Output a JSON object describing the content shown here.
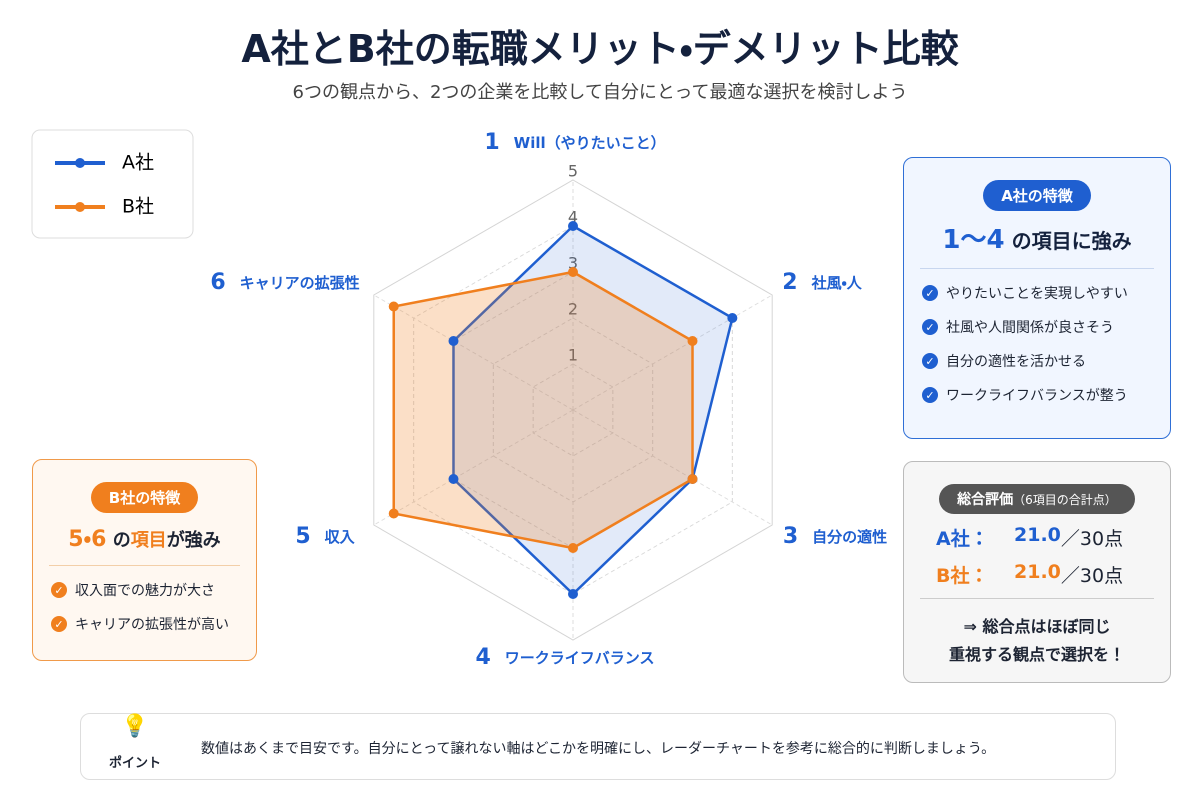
{
  "chart_data": {
    "type": "radar",
    "title": "A社とB社の転職メリット・デメリット比較",
    "subtitle": "6つの観点から、2つの企業を比較して自分にとって最適な選択を検討しよう",
    "category_numbers": [
      1,
      2,
      3,
      4,
      5,
      6
    ],
    "categories": [
      "Will（やりたいこと）",
      "社風・人",
      "自分の適性",
      "ワークライフバランス",
      "収入",
      "キャリアの拡張性"
    ],
    "series": [
      {
        "name": "A社",
        "color": "#1f5fd0",
        "values": [
          4,
          4,
          3,
          4,
          3,
          3
        ]
      },
      {
        "name": "B社",
        "color": "#f07f1e",
        "values": [
          3,
          3,
          3,
          3,
          4.5,
          4.5
        ]
      }
    ],
    "rlim": [
      0,
      5
    ],
    "rticks": [
      1,
      2,
      3,
      4,
      5
    ],
    "grid": true,
    "legend": "top-left"
  },
  "panel_a": {
    "badge": "A社の特徴",
    "headline_strong": "1〜4",
    "headline_rest": "の項目に強み",
    "items": [
      "やりたいことを実現しやすい",
      "社風や人間関係が良さそう",
      "自分の適性を活かせる",
      "ワークライフバランスが整う"
    ]
  },
  "panel_b": {
    "badge": "B社の特徴",
    "headline_strong": "5・6",
    "headline_mid": "の",
    "headline_strong2": "項目",
    "headline_rest": "が強み",
    "items": [
      "収入面での魅力が大さ",
      "キャリアの拡張性が高い"
    ]
  },
  "summary": {
    "badge": "総合評価",
    "badge_note": "（6項目の合計点）",
    "rows": [
      {
        "label": "A社：",
        "score": "21.0",
        "unit": "／30点"
      },
      {
        "label": "B社：",
        "score": "21.0",
        "unit": "／30点"
      }
    ],
    "conclusion": [
      "⇒ 総合点はほぼ同じ",
      "重視する観点で選択を！"
    ]
  },
  "footer": {
    "icon_label": "ポイント",
    "text": "数値はあくまで目安です。自分にとって譲れない軸はどこかを明確にし、レーダーチャートを参考に総合的に判断しましょう。"
  }
}
